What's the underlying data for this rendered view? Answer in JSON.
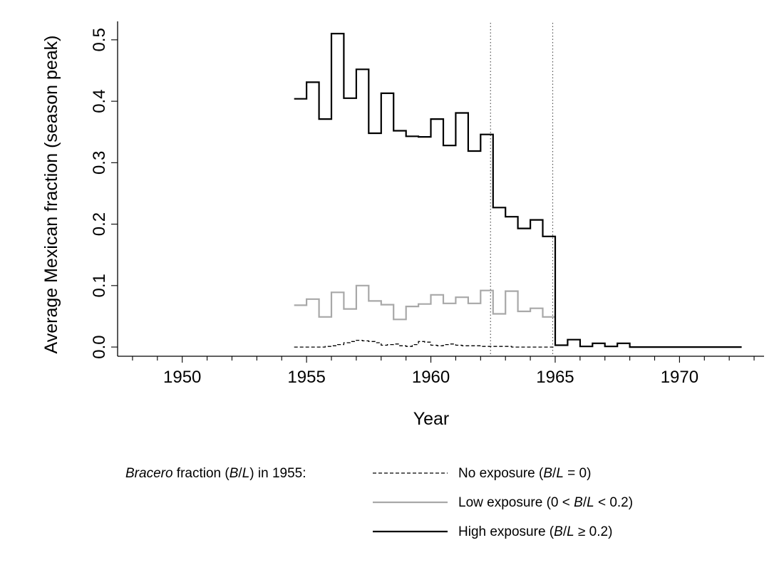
{
  "chart_data": {
    "type": "line",
    "step": true,
    "xlabel": "Year",
    "ylabel": "Average Mexican fraction (season peak)",
    "xlim": [
      1947.4,
      1973.4
    ],
    "ylim": [
      -0.015,
      0.53
    ],
    "x_ticks": [
      1950,
      1955,
      1960,
      1965,
      1970
    ],
    "x_tick_labels": [
      "1950",
      "1955",
      "1960",
      "1965",
      "1970"
    ],
    "y_ticks": [
      0.0,
      0.1,
      0.2,
      0.3,
      0.4,
      0.5
    ],
    "y_tick_labels": [
      "0.0",
      "0.1",
      "0.2",
      "0.3",
      "0.4",
      "0.5"
    ],
    "vlines": [
      1962.4,
      1964.9
    ],
    "legend": {
      "placement": "bottom",
      "title": "Bracero fraction (B/L) in 1955:",
      "title_parts": [
        {
          "text": "Bracero",
          "italic": true
        },
        {
          "text": " fraction (",
          "italic": false
        },
        {
          "text": "B",
          "italic": true
        },
        {
          "text": "/",
          "italic": false
        },
        {
          "text": "L",
          "italic": true
        },
        {
          "text": ") in 1955:",
          "italic": false
        }
      ]
    },
    "series": [
      {
        "name": "No exposure (B/L = 0)",
        "label_parts": [
          {
            "text": "No exposure (",
            "italic": false
          },
          {
            "text": "B",
            "italic": true
          },
          {
            "text": "/",
            "italic": false
          },
          {
            "text": "L",
            "italic": true
          },
          {
            "text": " = 0)",
            "italic": false
          }
        ],
        "style": "dashed",
        "color": "#000000",
        "x": [
          1954.5,
          1954.75,
          1955.0,
          1955.25,
          1955.5,
          1955.75,
          1956.0,
          1956.25,
          1956.5,
          1956.75,
          1957.0,
          1957.25,
          1957.5,
          1957.75,
          1958.0,
          1958.25,
          1958.5,
          1958.75,
          1959.0,
          1959.25,
          1959.5,
          1959.75,
          1960.0,
          1960.25,
          1960.5,
          1960.75,
          1961.0,
          1961.25,
          1961.5,
          1961.75,
          1962.0,
          1962.25,
          1962.5,
          1962.75,
          1963.0,
          1963.25,
          1963.5,
          1963.75,
          1964.0,
          1964.25,
          1964.5,
          1964.75
        ],
        "values": [
          0.0,
          0.0,
          0.0,
          0.0,
          0.0,
          0.001,
          0.002,
          0.004,
          0.007,
          0.009,
          0.011,
          0.01,
          0.009,
          0.007,
          0.003,
          0.004,
          0.005,
          0.002,
          0.001,
          0.004,
          0.009,
          0.008,
          0.003,
          0.002,
          0.004,
          0.005,
          0.003,
          0.002,
          0.002,
          0.002,
          0.001,
          0.001,
          0.001,
          0.001,
          0.001,
          0.0,
          0.0,
          0.0,
          0.0,
          0.0,
          0.0,
          0.0
        ]
      },
      {
        "name": "Low exposure (0 < B/L < 0.2)",
        "label_parts": [
          {
            "text": "Low exposure (0 < ",
            "italic": false
          },
          {
            "text": "B",
            "italic": true
          },
          {
            "text": "/",
            "italic": false
          },
          {
            "text": "L",
            "italic": true
          },
          {
            "text": " < 0.2)",
            "italic": false
          }
        ],
        "style": "solid",
        "color": "#a8a8a8",
        "x": [
          1954.5,
          1955.0,
          1955.5,
          1956.0,
          1956.5,
          1957.0,
          1957.5,
          1958.0,
          1958.5,
          1959.0,
          1959.5,
          1960.0,
          1960.5,
          1961.0,
          1961.5,
          1962.0,
          1962.5,
          1963.0,
          1963.5,
          1964.0,
          1964.5
        ],
        "values": [
          0.068,
          0.078,
          0.049,
          0.089,
          0.062,
          0.1,
          0.075,
          0.069,
          0.045,
          0.066,
          0.07,
          0.085,
          0.071,
          0.081,
          0.071,
          0.092,
          0.054,
          0.091,
          0.058,
          0.063,
          0.049
        ]
      },
      {
        "name": "High exposure (B/L ≥ 0.2)",
        "label_parts": [
          {
            "text": "High exposure (",
            "italic": false
          },
          {
            "text": "B",
            "italic": true
          },
          {
            "text": "/",
            "italic": false
          },
          {
            "text": "L",
            "italic": true
          },
          {
            "text": " ≥ 0.2)",
            "italic": false
          }
        ],
        "style": "solid",
        "color": "#000000",
        "x": [
          1954.5,
          1955.0,
          1955.5,
          1956.0,
          1956.5,
          1957.0,
          1957.5,
          1958.0,
          1958.5,
          1959.0,
          1959.5,
          1960.0,
          1960.5,
          1961.0,
          1961.5,
          1962.0,
          1962.5,
          1963.0,
          1963.5,
          1964.0,
          1964.5,
          1965.0,
          1965.5,
          1966.0,
          1966.5,
          1967.0,
          1967.5,
          1968.0,
          1968.5,
          1969.0,
          1969.5,
          1970.0,
          1970.5,
          1971.0,
          1971.5,
          1972.0
        ],
        "values": [
          0.404,
          0.431,
          0.371,
          0.51,
          0.405,
          0.452,
          0.348,
          0.413,
          0.352,
          0.343,
          0.342,
          0.371,
          0.328,
          0.381,
          0.319,
          0.346,
          0.227,
          0.212,
          0.193,
          0.207,
          0.18,
          0.003,
          0.012,
          0.001,
          0.006,
          0.001,
          0.006,
          0.0,
          0.0,
          0.0,
          0.0,
          0.0,
          0.0,
          0.0,
          0.0,
          0.0
        ],
        "end_x": 1972.5
      }
    ]
  }
}
